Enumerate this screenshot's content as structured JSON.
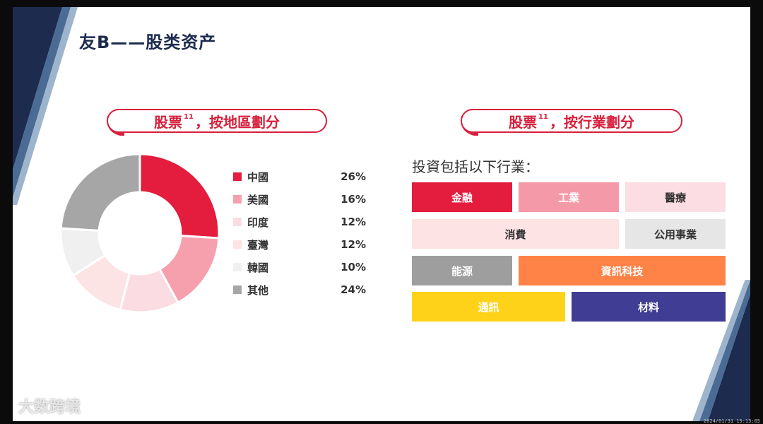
{
  "slide": {
    "title": "友B——股类资产"
  },
  "sections": {
    "region": {
      "label": "股票",
      "note": "11",
      "suffix": "，按地區劃分"
    },
    "industry": {
      "label": "股票",
      "note": "11",
      "suffix": "，按行業劃分"
    }
  },
  "industry": {
    "intro": "投資包括以下行業：",
    "tiles": [
      {
        "label": "金融",
        "bg": "#e41c3d",
        "fg": "#ffffff"
      },
      {
        "label": "工業",
        "bg": "#f499a8",
        "fg": "#ffffff"
      },
      {
        "label": "醫療",
        "bg": "#fbdde3",
        "fg": "#333333"
      },
      {
        "label": "消費",
        "bg": "#fde3e3",
        "fg": "#333333"
      },
      {
        "label": "公用事業",
        "bg": "#e6e6e6",
        "fg": "#333333"
      },
      {
        "label": "能源",
        "bg": "#9e9e9e",
        "fg": "#ffffff"
      },
      {
        "label": "資訊科技",
        "bg": "#ff8247",
        "fg": "#ffffff"
      },
      {
        "label": "通訊",
        "bg": "#ffd21a",
        "fg": "#ffffff"
      },
      {
        "label": "材料",
        "bg": "#3f3d94",
        "fg": "#ffffff"
      }
    ]
  },
  "chart_data": {
    "type": "pie",
    "variant": "donut",
    "categories": [
      "中國",
      "美國",
      "印度",
      "臺灣",
      "韓國",
      "其他"
    ],
    "values": [
      26,
      16,
      12,
      12,
      10,
      24
    ],
    "value_labels": [
      "26%",
      "16%",
      "12%",
      "12%",
      "10%",
      "24%"
    ],
    "colors": [
      "#e41c3d",
      "#f6a0ad",
      "#fbdce2",
      "#fde4e4",
      "#f0f0f0",
      "#a6a6a6"
    ],
    "legend_position": "right"
  },
  "watermark": {
    "text": "大数跨境"
  },
  "stamp": {
    "text": "2024/01/31 15:13:05"
  }
}
